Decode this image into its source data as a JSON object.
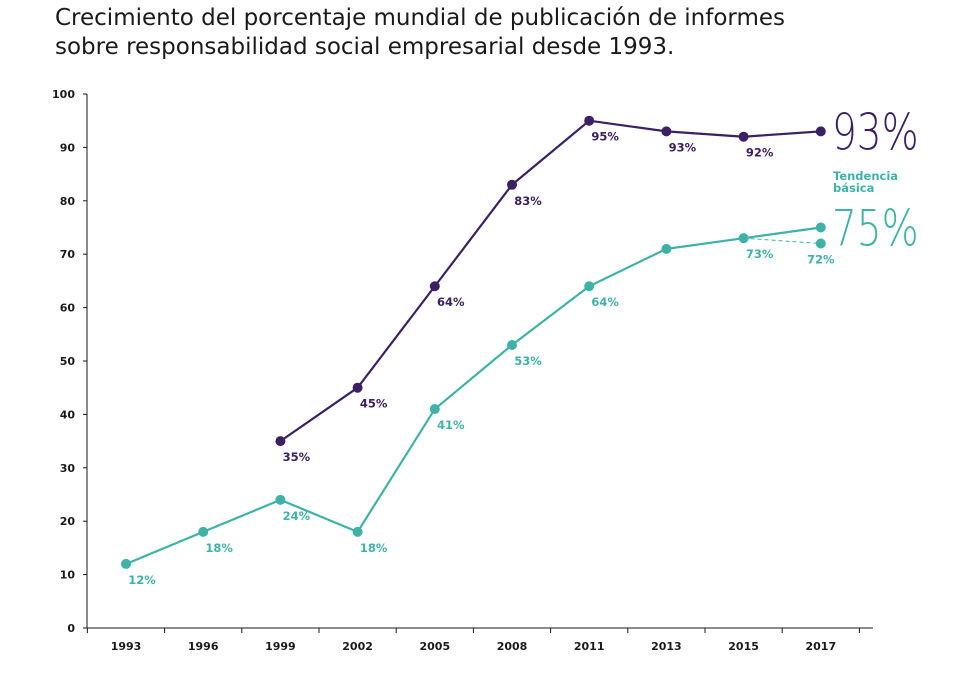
{
  "title": {
    "line1": "Crecimiento del porcentaje mundial de publicación de informes",
    "line2": "sobre responsabilidad social empresarial desde 1993."
  },
  "colors": {
    "n100": "#3b2063",
    "g250": "#3fb2a8",
    "axis": "#1a1a1a"
  },
  "chart_data": {
    "type": "line",
    "title": "Crecimiento del porcentaje mundial de publicación de informes sobre responsabilidad social empresarial desde 1993.",
    "categories": [
      "1993",
      "1996",
      "1999",
      "2002",
      "2005",
      "2008",
      "2011",
      "2013",
      "2015",
      "2017"
    ],
    "ylim": [
      0,
      100
    ],
    "yticks": [
      "0",
      "10",
      "20",
      "30",
      "40",
      "50",
      "60",
      "70",
      "80",
      "90",
      "100"
    ],
    "grid": false,
    "series": [
      {
        "key": "n100",
        "values": [
          null,
          null,
          35,
          45,
          64,
          83,
          95,
          93,
          92,
          93
        ],
        "labels": [
          null,
          null,
          "35%",
          "45%",
          "64%",
          "83%",
          "95%",
          "93%",
          "92%",
          null
        ],
        "end_label": "93%"
      },
      {
        "key": "g250",
        "values": [
          12,
          18,
          24,
          18,
          41,
          53,
          64,
          71,
          73,
          75
        ],
        "labels": [
          "12%",
          "18%",
          "24%",
          "18%",
          "41%",
          "53%",
          "64%",
          null,
          "73%",
          null
        ],
        "end_label": "75%"
      },
      {
        "key": "g250_trend",
        "name": "Tendencia básica",
        "dashed_from": "2015",
        "x": "2017",
        "value": 72,
        "label": "72%"
      }
    ],
    "annotations": {
      "trend_label_line1": "Tendencia",
      "trend_label_line2": "básica"
    }
  }
}
